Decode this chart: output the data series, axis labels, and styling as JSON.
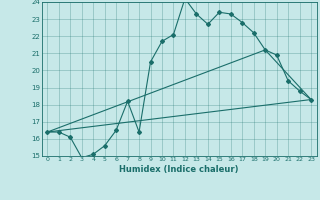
{
  "xlabel": "Humidex (Indice chaleur)",
  "xlim": [
    -0.5,
    23.5
  ],
  "ylim": [
    15,
    24
  ],
  "xticks": [
    0,
    1,
    2,
    3,
    4,
    5,
    6,
    7,
    8,
    9,
    10,
    11,
    12,
    13,
    14,
    15,
    16,
    17,
    18,
    19,
    20,
    21,
    22,
    23
  ],
  "yticks": [
    15,
    16,
    17,
    18,
    19,
    20,
    21,
    22,
    23,
    24
  ],
  "bg_color": "#c6e8e8",
  "line_color": "#1a6e6a",
  "line1_x": [
    0,
    1,
    2,
    3,
    4,
    5,
    6,
    7,
    8,
    9,
    10,
    11,
    12,
    13,
    14,
    15,
    16,
    17,
    18,
    19,
    20,
    21,
    22,
    23
  ],
  "line1_y": [
    16.4,
    16.4,
    16.1,
    14.9,
    15.1,
    15.6,
    16.5,
    18.2,
    16.4,
    20.5,
    21.7,
    22.1,
    24.2,
    23.3,
    22.7,
    23.4,
    23.3,
    22.8,
    22.2,
    21.2,
    20.9,
    19.4,
    18.8,
    18.3
  ],
  "line2_x": [
    0,
    23
  ],
  "line2_y": [
    16.4,
    18.3
  ],
  "line3_x": [
    0,
    19,
    23
  ],
  "line3_y": [
    16.4,
    21.2,
    18.3
  ]
}
